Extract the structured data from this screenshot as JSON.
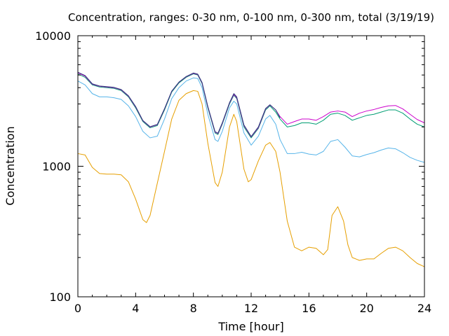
{
  "chart_data": {
    "type": "line",
    "title": "Concentration, ranges: 0-30 nm, 0-100 nm, 0-300 nm, total (3/19/19)",
    "xlabel": "Time [hour]",
    "ylabel": "Concentration",
    "xlim": [
      0,
      24
    ],
    "ylim": [
      100,
      10000
    ],
    "yscale": "log",
    "grid": false,
    "legend": "none",
    "x_ticks": [
      0,
      4,
      8,
      12,
      16,
      20,
      24
    ],
    "x_tick_labels": [
      "0",
      "4",
      "8",
      "12",
      "16",
      "20",
      "24"
    ],
    "y_ticks": [
      100,
      1000,
      10000
    ],
    "y_tick_labels": [
      "100",
      "1000",
      "10000"
    ],
    "series": [
      {
        "color": "#e69f00",
        "points": [
          [
            0,
            1250
          ],
          [
            0.5,
            1220
          ],
          [
            1,
            980
          ],
          [
            1.5,
            880
          ],
          [
            2,
            870
          ],
          [
            2.5,
            870
          ],
          [
            3,
            860
          ],
          [
            3.5,
            760
          ],
          [
            4,
            560
          ],
          [
            4.5,
            390
          ],
          [
            4.75,
            370
          ],
          [
            5,
            420
          ],
          [
            5.5,
            740
          ],
          [
            6,
            1300
          ],
          [
            6.5,
            2300
          ],
          [
            7,
            3200
          ],
          [
            7.5,
            3600
          ],
          [
            8,
            3800
          ],
          [
            8.3,
            3750
          ],
          [
            8.6,
            3000
          ],
          [
            9,
            1500
          ],
          [
            9.5,
            750
          ],
          [
            9.7,
            700
          ],
          [
            10,
            900
          ],
          [
            10.5,
            2000
          ],
          [
            10.8,
            2500
          ],
          [
            11,
            2200
          ],
          [
            11.5,
            950
          ],
          [
            11.8,
            760
          ],
          [
            12,
            790
          ],
          [
            12.5,
            1100
          ],
          [
            13,
            1450
          ],
          [
            13.3,
            1520
          ],
          [
            13.7,
            1300
          ],
          [
            14,
            900
          ],
          [
            14.5,
            380
          ],
          [
            15,
            240
          ],
          [
            15.5,
            225
          ],
          [
            16,
            240
          ],
          [
            16.5,
            235
          ],
          [
            17,
            210
          ],
          [
            17.3,
            230
          ],
          [
            17.6,
            420
          ],
          [
            18,
            490
          ],
          [
            18.4,
            380
          ],
          [
            18.7,
            250
          ],
          [
            19,
            200
          ],
          [
            19.5,
            190
          ],
          [
            20,
            195
          ],
          [
            20.5,
            195
          ],
          [
            21,
            215
          ],
          [
            21.5,
            235
          ],
          [
            22,
            240
          ],
          [
            22.5,
            225
          ],
          [
            23,
            200
          ],
          [
            23.5,
            180
          ],
          [
            24,
            170
          ]
        ]
      },
      {
        "color": "#56b4e9",
        "points": [
          [
            0,
            4500
          ],
          [
            0.5,
            4200
          ],
          [
            1,
            3600
          ],
          [
            1.5,
            3400
          ],
          [
            2,
            3400
          ],
          [
            2.5,
            3350
          ],
          [
            3,
            3250
          ],
          [
            3.5,
            2900
          ],
          [
            4,
            2400
          ],
          [
            4.5,
            1850
          ],
          [
            5,
            1650
          ],
          [
            5.5,
            1700
          ],
          [
            6,
            2300
          ],
          [
            6.5,
            3300
          ],
          [
            7,
            4000
          ],
          [
            7.5,
            4500
          ],
          [
            8,
            4750
          ],
          [
            8.3,
            4700
          ],
          [
            8.6,
            4000
          ],
          [
            9,
            2500
          ],
          [
            9.5,
            1600
          ],
          [
            9.7,
            1550
          ],
          [
            10,
            1850
          ],
          [
            10.5,
            2800
          ],
          [
            10.8,
            3150
          ],
          [
            11,
            3000
          ],
          [
            11.5,
            1800
          ],
          [
            12,
            1450
          ],
          [
            12.5,
            1700
          ],
          [
            13,
            2300
          ],
          [
            13.3,
            2450
          ],
          [
            13.7,
            2100
          ],
          [
            14,
            1600
          ],
          [
            14.5,
            1250
          ],
          [
            15,
            1250
          ],
          [
            15.5,
            1280
          ],
          [
            16,
            1240
          ],
          [
            16.5,
            1220
          ],
          [
            17,
            1300
          ],
          [
            17.5,
            1550
          ],
          [
            18,
            1600
          ],
          [
            18.5,
            1400
          ],
          [
            19,
            1200
          ],
          [
            19.5,
            1180
          ],
          [
            20,
            1230
          ],
          [
            20.5,
            1270
          ],
          [
            21,
            1330
          ],
          [
            21.5,
            1380
          ],
          [
            22,
            1360
          ],
          [
            22.5,
            1270
          ],
          [
            23,
            1170
          ],
          [
            23.5,
            1110
          ],
          [
            24,
            1070
          ]
        ]
      },
      {
        "color": "#009e73",
        "points": [
          [
            0,
            5100
          ],
          [
            0.5,
            4800
          ],
          [
            1,
            4200
          ],
          [
            1.5,
            4050
          ],
          [
            2,
            4000
          ],
          [
            2.5,
            3950
          ],
          [
            3,
            3800
          ],
          [
            3.5,
            3400
          ],
          [
            4,
            2800
          ],
          [
            4.5,
            2200
          ],
          [
            5,
            1970
          ],
          [
            5.5,
            2050
          ],
          [
            6,
            2700
          ],
          [
            6.5,
            3700
          ],
          [
            7,
            4350
          ],
          [
            7.5,
            4800
          ],
          [
            8,
            5100
          ],
          [
            8.3,
            5000
          ],
          [
            8.6,
            4300
          ],
          [
            9,
            2800
          ],
          [
            9.5,
            1800
          ],
          [
            9.7,
            1750
          ],
          [
            10,
            2100
          ],
          [
            10.5,
            3000
          ],
          [
            10.8,
            3500
          ],
          [
            11,
            3300
          ],
          [
            11.5,
            2000
          ],
          [
            12,
            1650
          ],
          [
            12.5,
            1950
          ],
          [
            13,
            2700
          ],
          [
            13.3,
            2900
          ],
          [
            13.7,
            2600
          ],
          [
            14,
            2300
          ],
          [
            14.5,
            2000
          ],
          [
            15,
            2050
          ],
          [
            15.5,
            2150
          ],
          [
            16,
            2150
          ],
          [
            16.5,
            2100
          ],
          [
            17,
            2250
          ],
          [
            17.5,
            2500
          ],
          [
            18,
            2550
          ],
          [
            18.5,
            2450
          ],
          [
            19,
            2250
          ],
          [
            19.5,
            2350
          ],
          [
            20,
            2450
          ],
          [
            20.5,
            2500
          ],
          [
            21,
            2600
          ],
          [
            21.5,
            2700
          ],
          [
            22,
            2700
          ],
          [
            22.5,
            2550
          ],
          [
            23,
            2300
          ],
          [
            23.5,
            2100
          ],
          [
            24,
            2000
          ]
        ]
      },
      {
        "color": "#cc00cc",
        "points": [
          [
            0,
            5200
          ],
          [
            0.5,
            4900
          ],
          [
            1,
            4250
          ],
          [
            1.5,
            4100
          ],
          [
            2,
            4050
          ],
          [
            2.5,
            4000
          ],
          [
            3,
            3850
          ],
          [
            3.5,
            3450
          ],
          [
            4,
            2850
          ],
          [
            4.5,
            2230
          ],
          [
            5,
            2000
          ],
          [
            5.5,
            2080
          ],
          [
            6,
            2750
          ],
          [
            6.5,
            3750
          ],
          [
            7,
            4400
          ],
          [
            7.5,
            4850
          ],
          [
            8,
            5150
          ],
          [
            8.3,
            5050
          ],
          [
            8.6,
            4350
          ],
          [
            9,
            2850
          ],
          [
            9.5,
            1830
          ],
          [
            9.7,
            1780
          ],
          [
            10,
            2130
          ],
          [
            10.5,
            3050
          ],
          [
            10.8,
            3550
          ],
          [
            11,
            3350
          ],
          [
            11.5,
            2050
          ],
          [
            12,
            1680
          ],
          [
            12.5,
            1980
          ],
          [
            13,
            2750
          ],
          [
            13.3,
            2950
          ],
          [
            13.7,
            2700
          ],
          [
            14,
            2400
          ],
          [
            14.5,
            2100
          ],
          [
            15,
            2200
          ],
          [
            15.5,
            2300
          ],
          [
            16,
            2300
          ],
          [
            16.5,
            2250
          ],
          [
            17,
            2400
          ],
          [
            17.5,
            2600
          ],
          [
            18,
            2650
          ],
          [
            18.5,
            2600
          ],
          [
            19,
            2400
          ],
          [
            19.5,
            2550
          ],
          [
            20,
            2650
          ],
          [
            20.5,
            2720
          ],
          [
            21,
            2820
          ],
          [
            21.5,
            2900
          ],
          [
            22,
            2920
          ],
          [
            22.5,
            2750
          ],
          [
            23,
            2500
          ],
          [
            23.5,
            2280
          ],
          [
            24,
            2150
          ]
        ]
      },
      {
        "color": "#2a3a7a",
        "points": [
          [
            0,
            5250
          ],
          [
            0.5,
            4950
          ],
          [
            1,
            4280
          ],
          [
            1.5,
            4120
          ],
          [
            2,
            4070
          ],
          [
            2.5,
            4020
          ],
          [
            3,
            3870
          ],
          [
            3.5,
            3470
          ],
          [
            4,
            2870
          ],
          [
            4.5,
            2240
          ],
          [
            5,
            2010
          ],
          [
            5.5,
            2090
          ],
          [
            6,
            2760
          ],
          [
            6.5,
            3760
          ],
          [
            7,
            4410
          ],
          [
            7.5,
            4870
          ],
          [
            8,
            5180
          ],
          [
            8.3,
            5080
          ],
          [
            8.6,
            4380
          ],
          [
            9,
            2870
          ],
          [
            9.5,
            1840
          ],
          [
            9.7,
            1790
          ],
          [
            10,
            2150
          ],
          [
            10.5,
            3070
          ],
          [
            10.8,
            3600
          ],
          [
            11,
            3400
          ],
          [
            11.5,
            2070
          ],
          [
            12,
            1690
          ],
          [
            12.5,
            2000
          ],
          [
            13,
            2770
          ],
          [
            13.3,
            2960
          ],
          [
            13.7,
            2700
          ],
          [
            14,
            2350
          ]
        ]
      }
    ]
  }
}
